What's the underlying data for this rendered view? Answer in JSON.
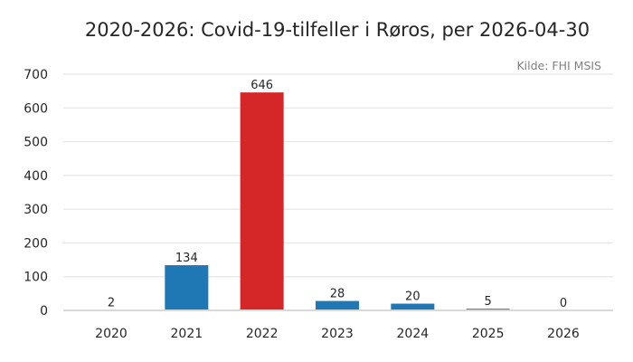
{
  "chart_data": {
    "type": "bar",
    "title": "2020-2026: Covid-19-tilfeller i Røros, per 2026-04-30",
    "source": "Kilde: FHI MSIS",
    "categories": [
      "2020",
      "2021",
      "2022",
      "2023",
      "2024",
      "2025",
      "2026"
    ],
    "values": [
      2,
      134,
      646,
      28,
      20,
      5,
      0
    ],
    "bar_colors": [
      "#1f77b4",
      "#1f77b4",
      "#d62728",
      "#1f77b4",
      "#1f77b4",
      "#1f77b4",
      "#1f77b4"
    ],
    "ylim": [
      0,
      700
    ],
    "yticks": [
      0,
      100,
      200,
      300,
      400,
      500,
      600,
      700
    ],
    "grid": true,
    "legend": "none"
  }
}
